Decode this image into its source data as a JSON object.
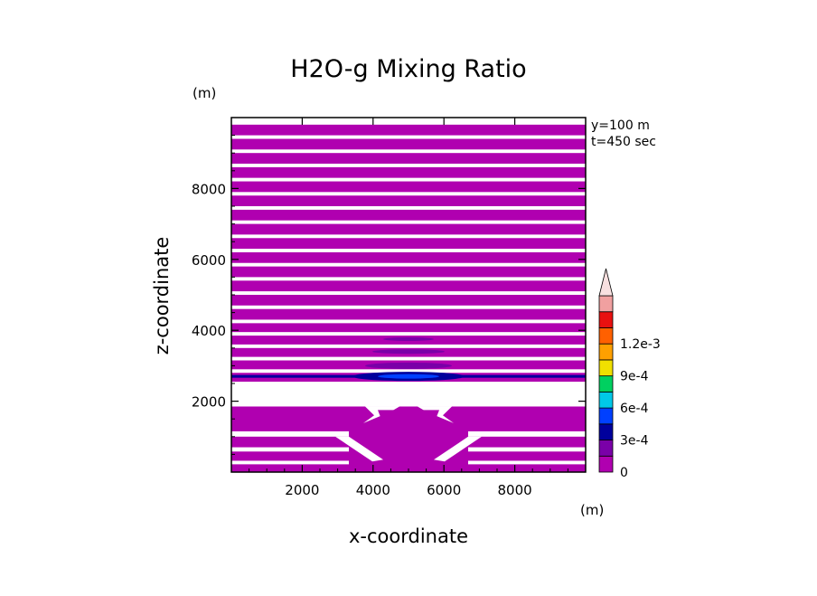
{
  "chart_data": {
    "type": "heatmap",
    "title": "H2O-g Mixing Ratio",
    "xlabel": "x-coordinate",
    "ylabel": "z-coordinate",
    "x_unit": "(m)",
    "y_unit": "(m)",
    "xlim": [
      0,
      10000
    ],
    "ylim": [
      0,
      10000
    ],
    "xticks": [
      2000,
      4000,
      6000,
      8000
    ],
    "yticks": [
      2000,
      4000,
      6000,
      8000
    ],
    "info": [
      "y=100 m",
      "t=450 sec"
    ],
    "colorbar": {
      "levels": [
        0,
        0.00015,
        0.0003,
        0.00045,
        0.0006,
        0.00075,
        0.0009,
        0.00105,
        0.0012,
        0.00135
      ],
      "colors": [
        "#b000b0",
        "#7a00a8",
        "#00009c",
        "#0040ff",
        "#00c8e8",
        "#00d060",
        "#f0e000",
        "#ffa000",
        "#ff6000",
        "#e81010",
        "#f0a0a0",
        "#f8e0e0"
      ],
      "labels": [
        {
          "value": 0,
          "text": "0"
        },
        {
          "value": 0.0003,
          "text": "3e-4"
        },
        {
          "value": 0.0006,
          "text": "6e-4"
        },
        {
          "value": 0.0009,
          "text": "9e-4"
        },
        {
          "value": 0.0012,
          "text": "1.2e-3"
        }
      ],
      "extend": "max"
    },
    "bands": [
      {
        "z0": 9500,
        "z1": 9800
      },
      {
        "z0": 9100,
        "z1": 9400
      },
      {
        "z0": 8700,
        "z1": 9000
      },
      {
        "z0": 8300,
        "z1": 8600
      },
      {
        "z0": 7900,
        "z1": 8200
      },
      {
        "z0": 7500,
        "z1": 7800
      },
      {
        "z0": 7100,
        "z1": 7400
      },
      {
        "z0": 6700,
        "z1": 7000
      },
      {
        "z0": 6300,
        "z1": 6600
      },
      {
        "z0": 5900,
        "z1": 6200
      },
      {
        "z0": 5500,
        "z1": 5800
      },
      {
        "z0": 5100,
        "z1": 5400
      },
      {
        "z0": 4700,
        "z1": 5000
      },
      {
        "z0": 4300,
        "z1": 4600
      },
      {
        "z0": 3950,
        "z1": 4200
      },
      {
        "z0": 3600,
        "z1": 3850
      },
      {
        "z0": 3250,
        "z1": 3500
      },
      {
        "z0": 2900,
        "z1": 3150
      },
      {
        "z0": 2550,
        "z1": 2800
      }
    ],
    "lower_region": {
      "z0": 0,
      "z1": 1850
    }
  }
}
